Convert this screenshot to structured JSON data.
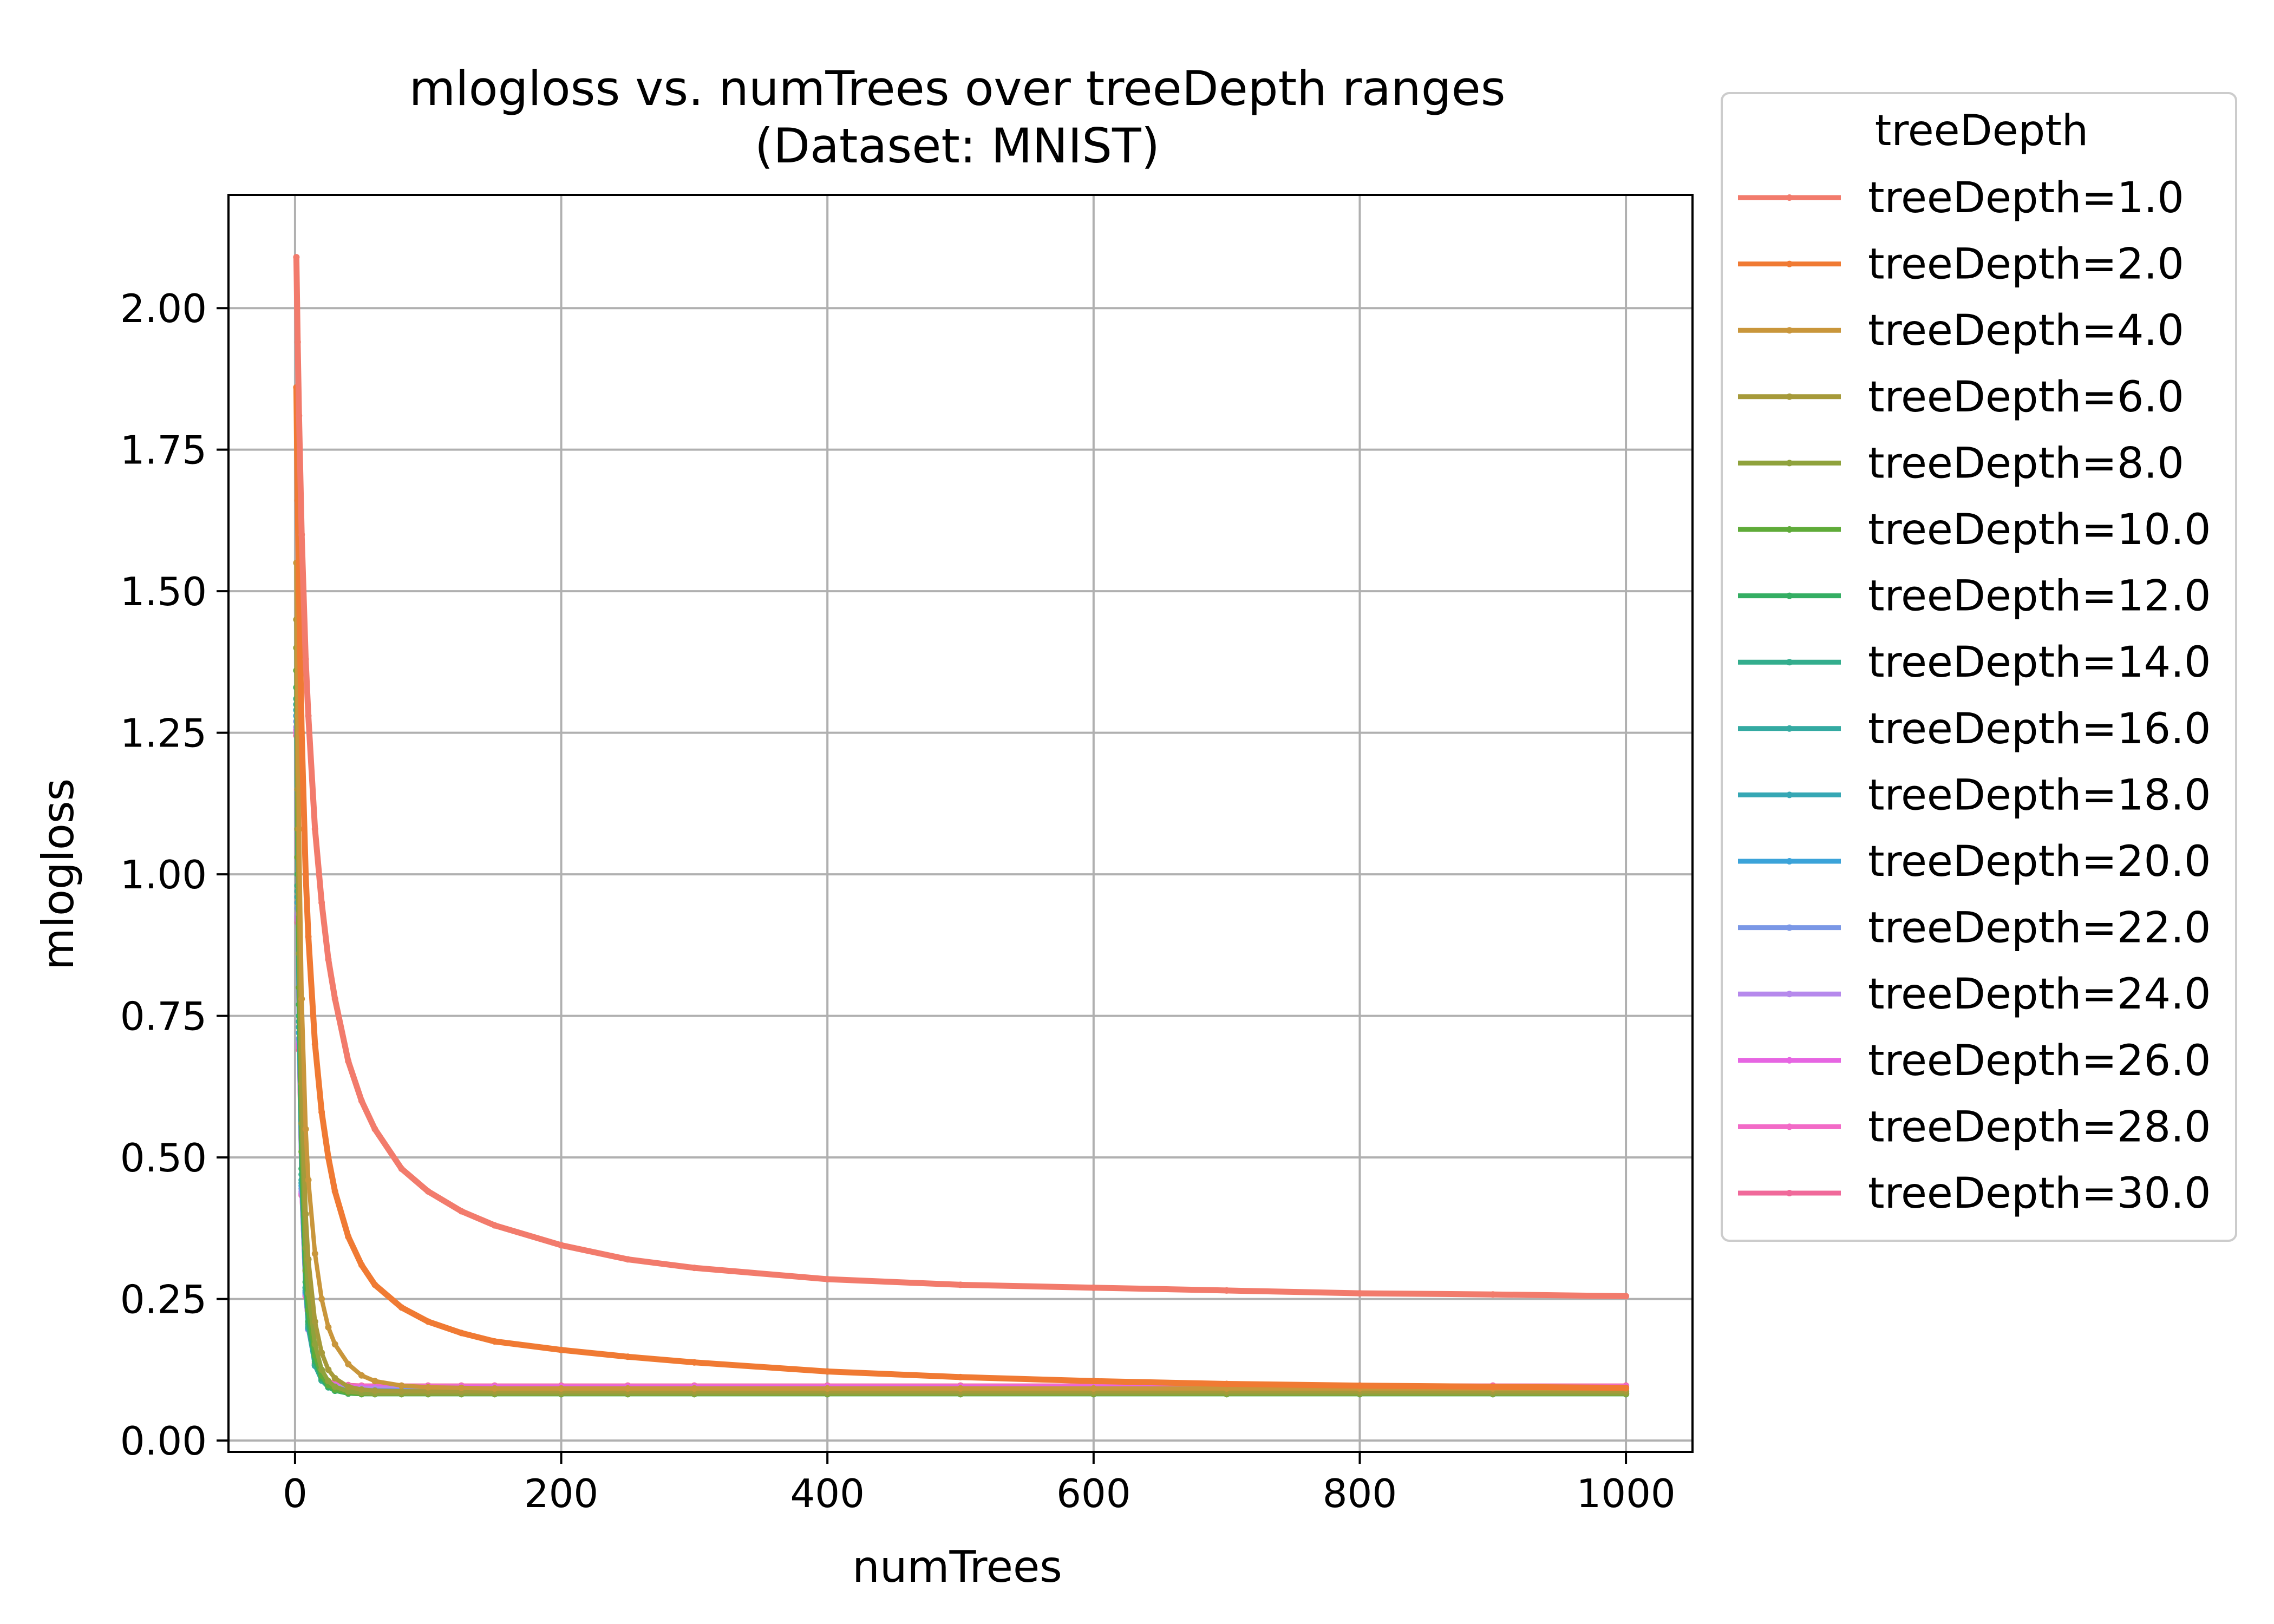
{
  "chart_data": {
    "type": "line",
    "title": "mlogloss vs. numTrees over treeDepth ranges",
    "subtitle": "(Dataset: MNIST)",
    "xlabel": "numTrees",
    "ylabel": "mlogloss",
    "xlim": [
      -50,
      1050
    ],
    "ylim": [
      -0.02,
      2.2
    ],
    "xticks": [
      0,
      200,
      400,
      600,
      800,
      1000
    ],
    "xtick_labels": [
      "0",
      "200",
      "400",
      "600",
      "800",
      "1000"
    ],
    "yticks": [
      0.0,
      0.25,
      0.5,
      0.75,
      1.0,
      1.25,
      1.5,
      1.75,
      2.0
    ],
    "ytick_labels": [
      "0.00",
      "0.25",
      "0.50",
      "0.75",
      "1.00",
      "1.25",
      "1.50",
      "1.75",
      "2.00"
    ],
    "grid": true,
    "legend": {
      "title": "treeDepth",
      "placement": "outside-right-top"
    },
    "x": [
      1,
      2,
      3,
      5,
      8,
      10,
      15,
      20,
      25,
      30,
      40,
      50,
      60,
      80,
      100,
      125,
      150,
      200,
      250,
      300,
      400,
      500,
      600,
      700,
      800,
      900,
      1000
    ],
    "series": [
      {
        "name": "treeDepth=1.0",
        "color": "#f27b6c",
        "values": [
          2.09,
          1.94,
          1.81,
          1.6,
          1.38,
          1.28,
          1.08,
          0.95,
          0.85,
          0.78,
          0.67,
          0.6,
          0.55,
          0.48,
          0.44,
          0.405,
          0.38,
          0.345,
          0.32,
          0.305,
          0.285,
          0.275,
          0.27,
          0.265,
          0.26,
          0.258,
          0.255
        ]
      },
      {
        "name": "treeDepth=2.0",
        "color": "#f07a33",
        "values": [
          1.86,
          1.66,
          1.5,
          1.25,
          1.0,
          0.89,
          0.7,
          0.58,
          0.5,
          0.44,
          0.36,
          0.31,
          0.275,
          0.235,
          0.21,
          0.19,
          0.175,
          0.16,
          0.148,
          0.138,
          0.122,
          0.112,
          0.105,
          0.1,
          0.097,
          0.095,
          0.093
        ]
      },
      {
        "name": "treeDepth=4.0",
        "color": "#c9963b",
        "values": [
          1.55,
          1.28,
          1.08,
          0.78,
          0.55,
          0.46,
          0.33,
          0.25,
          0.2,
          0.17,
          0.135,
          0.115,
          0.105,
          0.097,
          0.094,
          0.093,
          0.092,
          0.092,
          0.092,
          0.092,
          0.092,
          0.092,
          0.092,
          0.092,
          0.092,
          0.092,
          0.092
        ]
      },
      {
        "name": "treeDepth=6.0",
        "color": "#a69a3a",
        "values": [
          1.45,
          1.15,
          0.93,
          0.63,
          0.4,
          0.32,
          0.21,
          0.155,
          0.125,
          0.11,
          0.095,
          0.09,
          0.088,
          0.087,
          0.087,
          0.087,
          0.087,
          0.087,
          0.087,
          0.087,
          0.087,
          0.087,
          0.087,
          0.087,
          0.087,
          0.087,
          0.087
        ]
      },
      {
        "name": "treeDepth=8.0",
        "color": "#8fa23c",
        "values": [
          1.4,
          1.08,
          0.86,
          0.56,
          0.34,
          0.26,
          0.17,
          0.125,
          0.105,
          0.095,
          0.087,
          0.084,
          0.083,
          0.083,
          0.083,
          0.083,
          0.083,
          0.083,
          0.083,
          0.083,
          0.083,
          0.083,
          0.083,
          0.083,
          0.083,
          0.083,
          0.083
        ]
      },
      {
        "name": "treeDepth=10.0",
        "color": "#5fab39",
        "values": [
          1.36,
          1.03,
          0.8,
          0.51,
          0.3,
          0.23,
          0.15,
          0.115,
          0.098,
          0.09,
          0.084,
          0.082,
          0.082,
          0.082,
          0.082,
          0.082,
          0.082,
          0.082,
          0.082,
          0.082,
          0.082,
          0.082,
          0.082,
          0.082,
          0.082,
          0.082,
          0.082
        ]
      },
      {
        "name": "treeDepth=12.0",
        "color": "#34ae63",
        "values": [
          1.33,
          1.0,
          0.77,
          0.48,
          0.28,
          0.21,
          0.14,
          0.11,
          0.095,
          0.088,
          0.083,
          0.082,
          0.082,
          0.082,
          0.082,
          0.082,
          0.082,
          0.082,
          0.082,
          0.082,
          0.082,
          0.082,
          0.082,
          0.082,
          0.082,
          0.082,
          0.082
        ]
      },
      {
        "name": "treeDepth=14.0",
        "color": "#33ad8d",
        "values": [
          1.31,
          0.98,
          0.75,
          0.47,
          0.27,
          0.205,
          0.135,
          0.107,
          0.094,
          0.088,
          0.083,
          0.082,
          0.082,
          0.082,
          0.082,
          0.082,
          0.082,
          0.082,
          0.082,
          0.082,
          0.082,
          0.082,
          0.082,
          0.082,
          0.082,
          0.082,
          0.082
        ]
      },
      {
        "name": "treeDepth=16.0",
        "color": "#34aaa2",
        "values": [
          1.3,
          0.97,
          0.74,
          0.46,
          0.27,
          0.2,
          0.133,
          0.106,
          0.094,
          0.088,
          0.084,
          0.083,
          0.083,
          0.083,
          0.083,
          0.083,
          0.083,
          0.083,
          0.083,
          0.083,
          0.083,
          0.083,
          0.083,
          0.083,
          0.083,
          0.083,
          0.083
        ]
      },
      {
        "name": "treeDepth=18.0",
        "color": "#36a7b4",
        "values": [
          1.29,
          0.96,
          0.73,
          0.455,
          0.265,
          0.2,
          0.132,
          0.106,
          0.095,
          0.089,
          0.085,
          0.084,
          0.084,
          0.084,
          0.084,
          0.084,
          0.084,
          0.084,
          0.084,
          0.084,
          0.084,
          0.084,
          0.084,
          0.084,
          0.084,
          0.084,
          0.084
        ]
      },
      {
        "name": "treeDepth=20.0",
        "color": "#3ba3d9",
        "values": [
          1.28,
          0.95,
          0.72,
          0.45,
          0.262,
          0.198,
          0.132,
          0.107,
          0.096,
          0.09,
          0.087,
          0.086,
          0.086,
          0.086,
          0.086,
          0.086,
          0.086,
          0.086,
          0.086,
          0.086,
          0.086,
          0.086,
          0.086,
          0.086,
          0.086,
          0.086,
          0.086
        ]
      },
      {
        "name": "treeDepth=22.0",
        "color": "#7a97e6",
        "values": [
          1.27,
          0.94,
          0.71,
          0.445,
          0.26,
          0.197,
          0.133,
          0.108,
          0.098,
          0.093,
          0.09,
          0.089,
          0.089,
          0.089,
          0.089,
          0.089,
          0.089,
          0.089,
          0.089,
          0.089,
          0.089,
          0.089,
          0.089,
          0.089,
          0.089,
          0.089,
          0.089
        ]
      },
      {
        "name": "treeDepth=24.0",
        "color": "#b689ec",
        "values": [
          1.26,
          0.93,
          0.705,
          0.44,
          0.258,
          0.196,
          0.134,
          0.11,
          0.1,
          0.096,
          0.093,
          0.092,
          0.092,
          0.092,
          0.092,
          0.092,
          0.092,
          0.092,
          0.092,
          0.092,
          0.092,
          0.092,
          0.092,
          0.092,
          0.092,
          0.092,
          0.092
        ]
      },
      {
        "name": "treeDepth=26.0",
        "color": "#e665e2",
        "values": [
          1.255,
          0.925,
          0.7,
          0.437,
          0.257,
          0.196,
          0.135,
          0.112,
          0.102,
          0.098,
          0.095,
          0.094,
          0.094,
          0.094,
          0.094,
          0.094,
          0.094,
          0.094,
          0.094,
          0.094,
          0.094,
          0.094,
          0.094,
          0.094,
          0.094,
          0.094,
          0.094
        ]
      },
      {
        "name": "treeDepth=28.0",
        "color": "#f26ac7",
        "values": [
          1.25,
          0.92,
          0.695,
          0.435,
          0.256,
          0.196,
          0.136,
          0.113,
          0.104,
          0.1,
          0.097,
          0.096,
          0.096,
          0.096,
          0.096,
          0.096,
          0.096,
          0.096,
          0.096,
          0.096,
          0.096,
          0.096,
          0.096,
          0.096,
          0.096,
          0.096,
          0.096
        ]
      },
      {
        "name": "treeDepth=30.0",
        "color": "#f0699a",
        "values": [
          1.245,
          0.915,
          0.69,
          0.433,
          0.255,
          0.196,
          0.137,
          0.114,
          0.105,
          0.101,
          0.098,
          0.097,
          0.097,
          0.097,
          0.097,
          0.097,
          0.097,
          0.097,
          0.097,
          0.097,
          0.097,
          0.097,
          0.097,
          0.097,
          0.097,
          0.097,
          0.097
        ]
      }
    ]
  }
}
